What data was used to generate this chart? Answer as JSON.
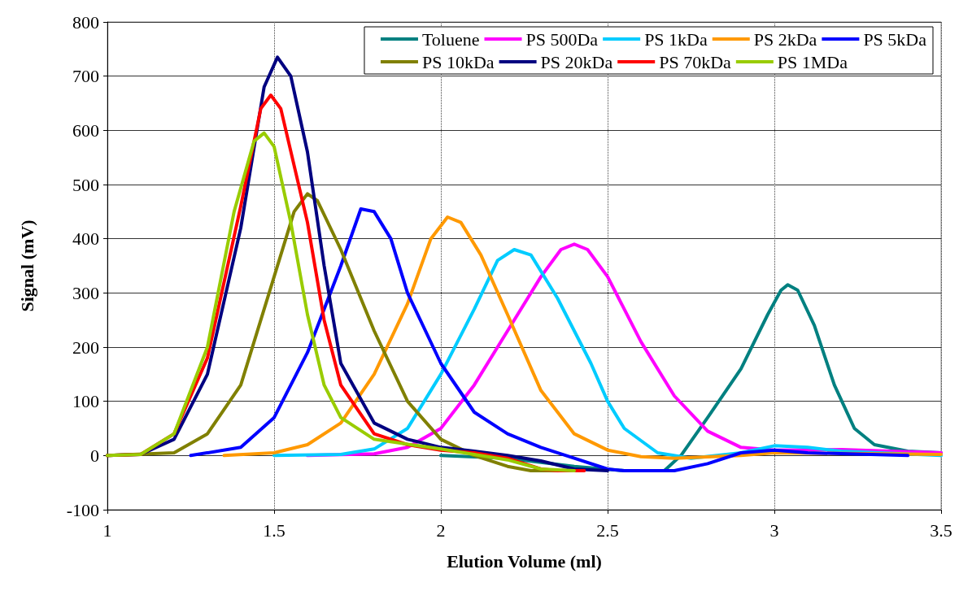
{
  "chart_data": {
    "type": "line",
    "xlabel": "Elution Volume (ml)",
    "ylabel": "Signal (mV)",
    "xlim": [
      1,
      3.5
    ],
    "xticks": [
      1,
      1.5,
      2,
      2.5,
      3,
      3.5
    ],
    "ylim": [
      -100,
      800
    ],
    "yticks": [
      -100,
      0,
      100,
      200,
      300,
      400,
      500,
      600,
      700,
      800
    ],
    "grid": true,
    "legend": "top right",
    "marker": "none",
    "line_style": "solid",
    "series": [
      {
        "name": "Toluene",
        "color": "#008080",
        "x": [
          2.0,
          2.2,
          2.4,
          2.55,
          2.67,
          2.72,
          2.8,
          2.9,
          2.98,
          3.02,
          3.04,
          3.07,
          3.12,
          3.18,
          3.24,
          3.3,
          3.4,
          3.5
        ],
        "values": [
          0,
          -5,
          -20,
          -28,
          -28,
          0,
          70,
          160,
          260,
          305,
          315,
          305,
          240,
          130,
          50,
          20,
          8,
          5
        ]
      },
      {
        "name": "PS 500Da",
        "color": "#ff00ff",
        "x": [
          1.6,
          1.8,
          1.9,
          2.0,
          2.1,
          2.2,
          2.3,
          2.36,
          2.4,
          2.44,
          2.5,
          2.6,
          2.7,
          2.8,
          2.9,
          3.0,
          3.2,
          3.5
        ],
        "values": [
          0,
          3,
          15,
          50,
          130,
          230,
          330,
          380,
          390,
          380,
          330,
          210,
          110,
          45,
          15,
          10,
          11,
          5
        ]
      },
      {
        "name": "PS 1kDa",
        "color": "#00ccff",
        "x": [
          1.5,
          1.7,
          1.8,
          1.9,
          2.0,
          2.1,
          2.17,
          2.22,
          2.27,
          2.35,
          2.45,
          2.5,
          2.55,
          2.65,
          2.75,
          2.9,
          3.0,
          3.1,
          3.2,
          3.5
        ],
        "values": [
          0,
          2,
          12,
          50,
          150,
          270,
          360,
          380,
          370,
          290,
          170,
          100,
          50,
          5,
          -5,
          5,
          18,
          15,
          8,
          0
        ]
      },
      {
        "name": "PS 2kDa",
        "color": "#ff9900",
        "x": [
          1.35,
          1.5,
          1.6,
          1.7,
          1.8,
          1.9,
          1.97,
          2.02,
          2.06,
          2.12,
          2.2,
          2.3,
          2.4,
          2.5,
          2.6,
          2.7,
          2.9,
          3.0,
          3.5
        ],
        "values": [
          0,
          5,
          20,
          60,
          150,
          280,
          400,
          440,
          430,
          370,
          260,
          120,
          40,
          10,
          -2,
          -5,
          0,
          5,
          2
        ]
      },
      {
        "name": "PS 5kDa",
        "color": "#0000ff",
        "x": [
          1.25,
          1.4,
          1.5,
          1.6,
          1.7,
          1.76,
          1.8,
          1.85,
          1.9,
          2.0,
          2.1,
          2.2,
          2.3,
          2.4,
          2.5,
          2.55,
          2.7,
          2.8,
          2.9,
          3.0,
          3.1,
          3.4
        ],
        "values": [
          0,
          15,
          70,
          190,
          350,
          455,
          450,
          400,
          300,
          170,
          80,
          40,
          15,
          -5,
          -25,
          -28,
          -28,
          -15,
          5,
          10,
          5,
          0
        ]
      },
      {
        "name": "PS 10kDa",
        "color": "#808000",
        "x": [
          1.0,
          1.2,
          1.3,
          1.4,
          1.5,
          1.56,
          1.6,
          1.63,
          1.7,
          1.8,
          1.9,
          2.0,
          2.1,
          2.2,
          2.27,
          2.35
        ],
        "values": [
          0,
          5,
          40,
          130,
          330,
          450,
          483,
          470,
          380,
          230,
          100,
          30,
          0,
          -20,
          -28,
          -28
        ]
      },
      {
        "name": "PS 20kDa",
        "color": "#000080",
        "x": [
          1.0,
          1.1,
          1.2,
          1.3,
          1.4,
          1.47,
          1.51,
          1.55,
          1.6,
          1.65,
          1.7,
          1.8,
          1.9,
          2.0,
          2.1,
          2.2,
          2.3,
          2.4,
          2.5
        ],
        "values": [
          0,
          2,
          30,
          150,
          420,
          680,
          735,
          700,
          560,
          350,
          170,
          60,
          30,
          15,
          8,
          0,
          -10,
          -25,
          -28
        ]
      },
      {
        "name": "PS 70kDa",
        "color": "#ff0000",
        "x": [
          1.0,
          1.1,
          1.2,
          1.3,
          1.4,
          1.46,
          1.49,
          1.52,
          1.6,
          1.65,
          1.7,
          1.8,
          1.9,
          2.0,
          2.1,
          2.2,
          2.3,
          2.35,
          2.43
        ],
        "values": [
          0,
          2,
          40,
          180,
          460,
          640,
          665,
          640,
          430,
          250,
          130,
          40,
          20,
          10,
          5,
          -5,
          -25,
          -28,
          -28
        ]
      },
      {
        "name": "PS 1MDa",
        "color": "#99cc00",
        "x": [
          1.0,
          1.1,
          1.2,
          1.3,
          1.38,
          1.44,
          1.47,
          1.5,
          1.55,
          1.6,
          1.65,
          1.7,
          1.8,
          2.0,
          2.2,
          2.3,
          2.4
        ],
        "values": [
          0,
          2,
          40,
          200,
          450,
          580,
          595,
          570,
          430,
          260,
          130,
          70,
          30,
          12,
          -8,
          -25,
          -28
        ]
      }
    ]
  }
}
